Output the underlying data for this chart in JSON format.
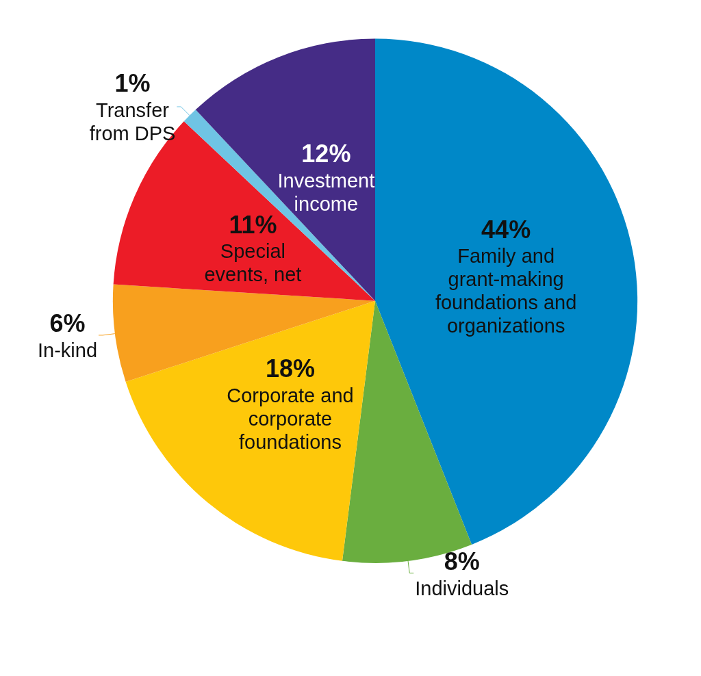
{
  "chart_data": {
    "type": "pie",
    "categories": [
      "Family and grant-making foundations and organizations",
      "Individuals",
      "Corporate and corporate foundations",
      "In-kind",
      "Special events, net",
      "Transfer from DPS",
      "Investment income"
    ],
    "values": [
      44,
      8,
      18,
      6,
      11,
      1,
      12
    ],
    "value_labels": [
      "44%",
      "8%",
      "18%",
      "6%",
      "11%",
      "1%",
      "12%"
    ],
    "colors": [
      "#0088c8",
      "#6aae3f",
      "#fec80a",
      "#f8a01e",
      "#ec1c27",
      "#6fc4e4",
      "#452c86"
    ],
    "legend": false
  }
}
